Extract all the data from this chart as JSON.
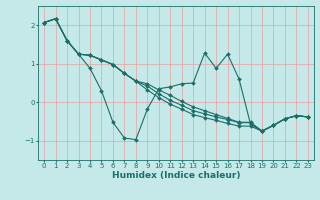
{
  "xlabel": "Humidex (Indice chaleur)",
  "ylabel": "",
  "xlim": [
    -0.5,
    23.5
  ],
  "ylim": [
    -1.5,
    2.5
  ],
  "xticks": [
    0,
    1,
    2,
    3,
    4,
    5,
    6,
    7,
    8,
    9,
    10,
    11,
    12,
    13,
    14,
    15,
    16,
    17,
    18,
    19,
    20,
    21,
    22,
    23
  ],
  "yticks": [
    -1,
    0,
    1,
    2
  ],
  "background_color": "#c5e8e8",
  "grid_color": "#e8a0a0",
  "line_color": "#1a7068",
  "lines": [
    [
      2.07,
      2.17,
      1.6,
      1.25,
      0.88,
      0.3,
      -0.52,
      -0.93,
      -0.97,
      -0.18,
      0.35,
      0.4,
      0.48,
      0.5,
      1.28,
      0.88,
      1.25,
      0.6,
      -0.57,
      -0.75,
      -0.6,
      -0.43,
      -0.35,
      -0.38
    ],
    [
      2.07,
      2.17,
      1.6,
      1.25,
      1.22,
      1.1,
      0.98,
      0.75,
      0.55,
      0.32,
      0.12,
      -0.05,
      -0.18,
      -0.32,
      -0.4,
      -0.47,
      -0.55,
      -0.62,
      -0.62,
      -0.75,
      -0.6,
      -0.43,
      -0.35,
      -0.38
    ],
    [
      2.07,
      2.17,
      1.6,
      1.25,
      1.22,
      1.1,
      0.98,
      0.75,
      0.55,
      0.42,
      0.22,
      0.05,
      -0.08,
      -0.22,
      -0.3,
      -0.38,
      -0.45,
      -0.53,
      -0.53,
      -0.75,
      -0.6,
      -0.43,
      -0.35,
      -0.38
    ],
    [
      2.07,
      2.17,
      1.6,
      1.25,
      1.22,
      1.1,
      0.98,
      0.75,
      0.55,
      0.48,
      0.32,
      0.18,
      0.02,
      -0.12,
      -0.22,
      -0.32,
      -0.42,
      -0.52,
      -0.52,
      -0.75,
      -0.6,
      -0.43,
      -0.35,
      -0.38
    ]
  ]
}
